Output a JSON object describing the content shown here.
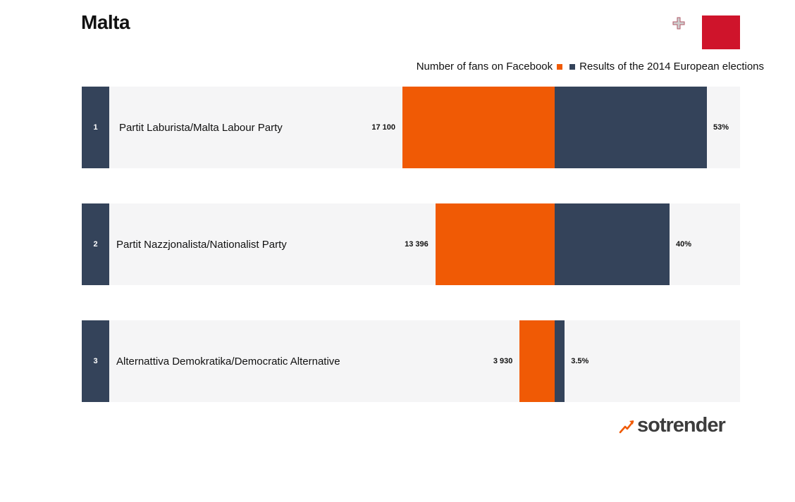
{
  "title": "Malta",
  "flag": {
    "left_color": "#ffffff",
    "right_color": "#cf142b",
    "emblem": "george-cross-icon"
  },
  "legend": {
    "fans_label": "Number of fans on Facebook",
    "elections_label": "Results of the 2014 European elections"
  },
  "colors": {
    "fans": "#f05a05",
    "elections": "#34435a",
    "row_bg": "#f5f5f6"
  },
  "brand": {
    "name": "sotrender",
    "icon": "trend-arrow-icon"
  },
  "chart_data": {
    "type": "bar",
    "orientation": "diverging-horizontal",
    "categories": [
      "Partit Laburista/Malta Labour Party",
      "Partit Nazzjonalista/Nationalist Party",
      "Alternattiva Demokratika/Democratic Alternative"
    ],
    "ranks": [
      "1",
      "2",
      "3"
    ],
    "series": [
      {
        "name": "Number of fans on Facebook",
        "values": [
          17100,
          13396,
          3930
        ],
        "labels": [
          "17 100",
          "13 396",
          "3 930"
        ]
      },
      {
        "name": "Results of the 2014 European elections",
        "values": [
          53,
          40,
          3.5
        ],
        "labels": [
          "53%",
          "40%",
          "3.5%"
        ]
      }
    ]
  }
}
